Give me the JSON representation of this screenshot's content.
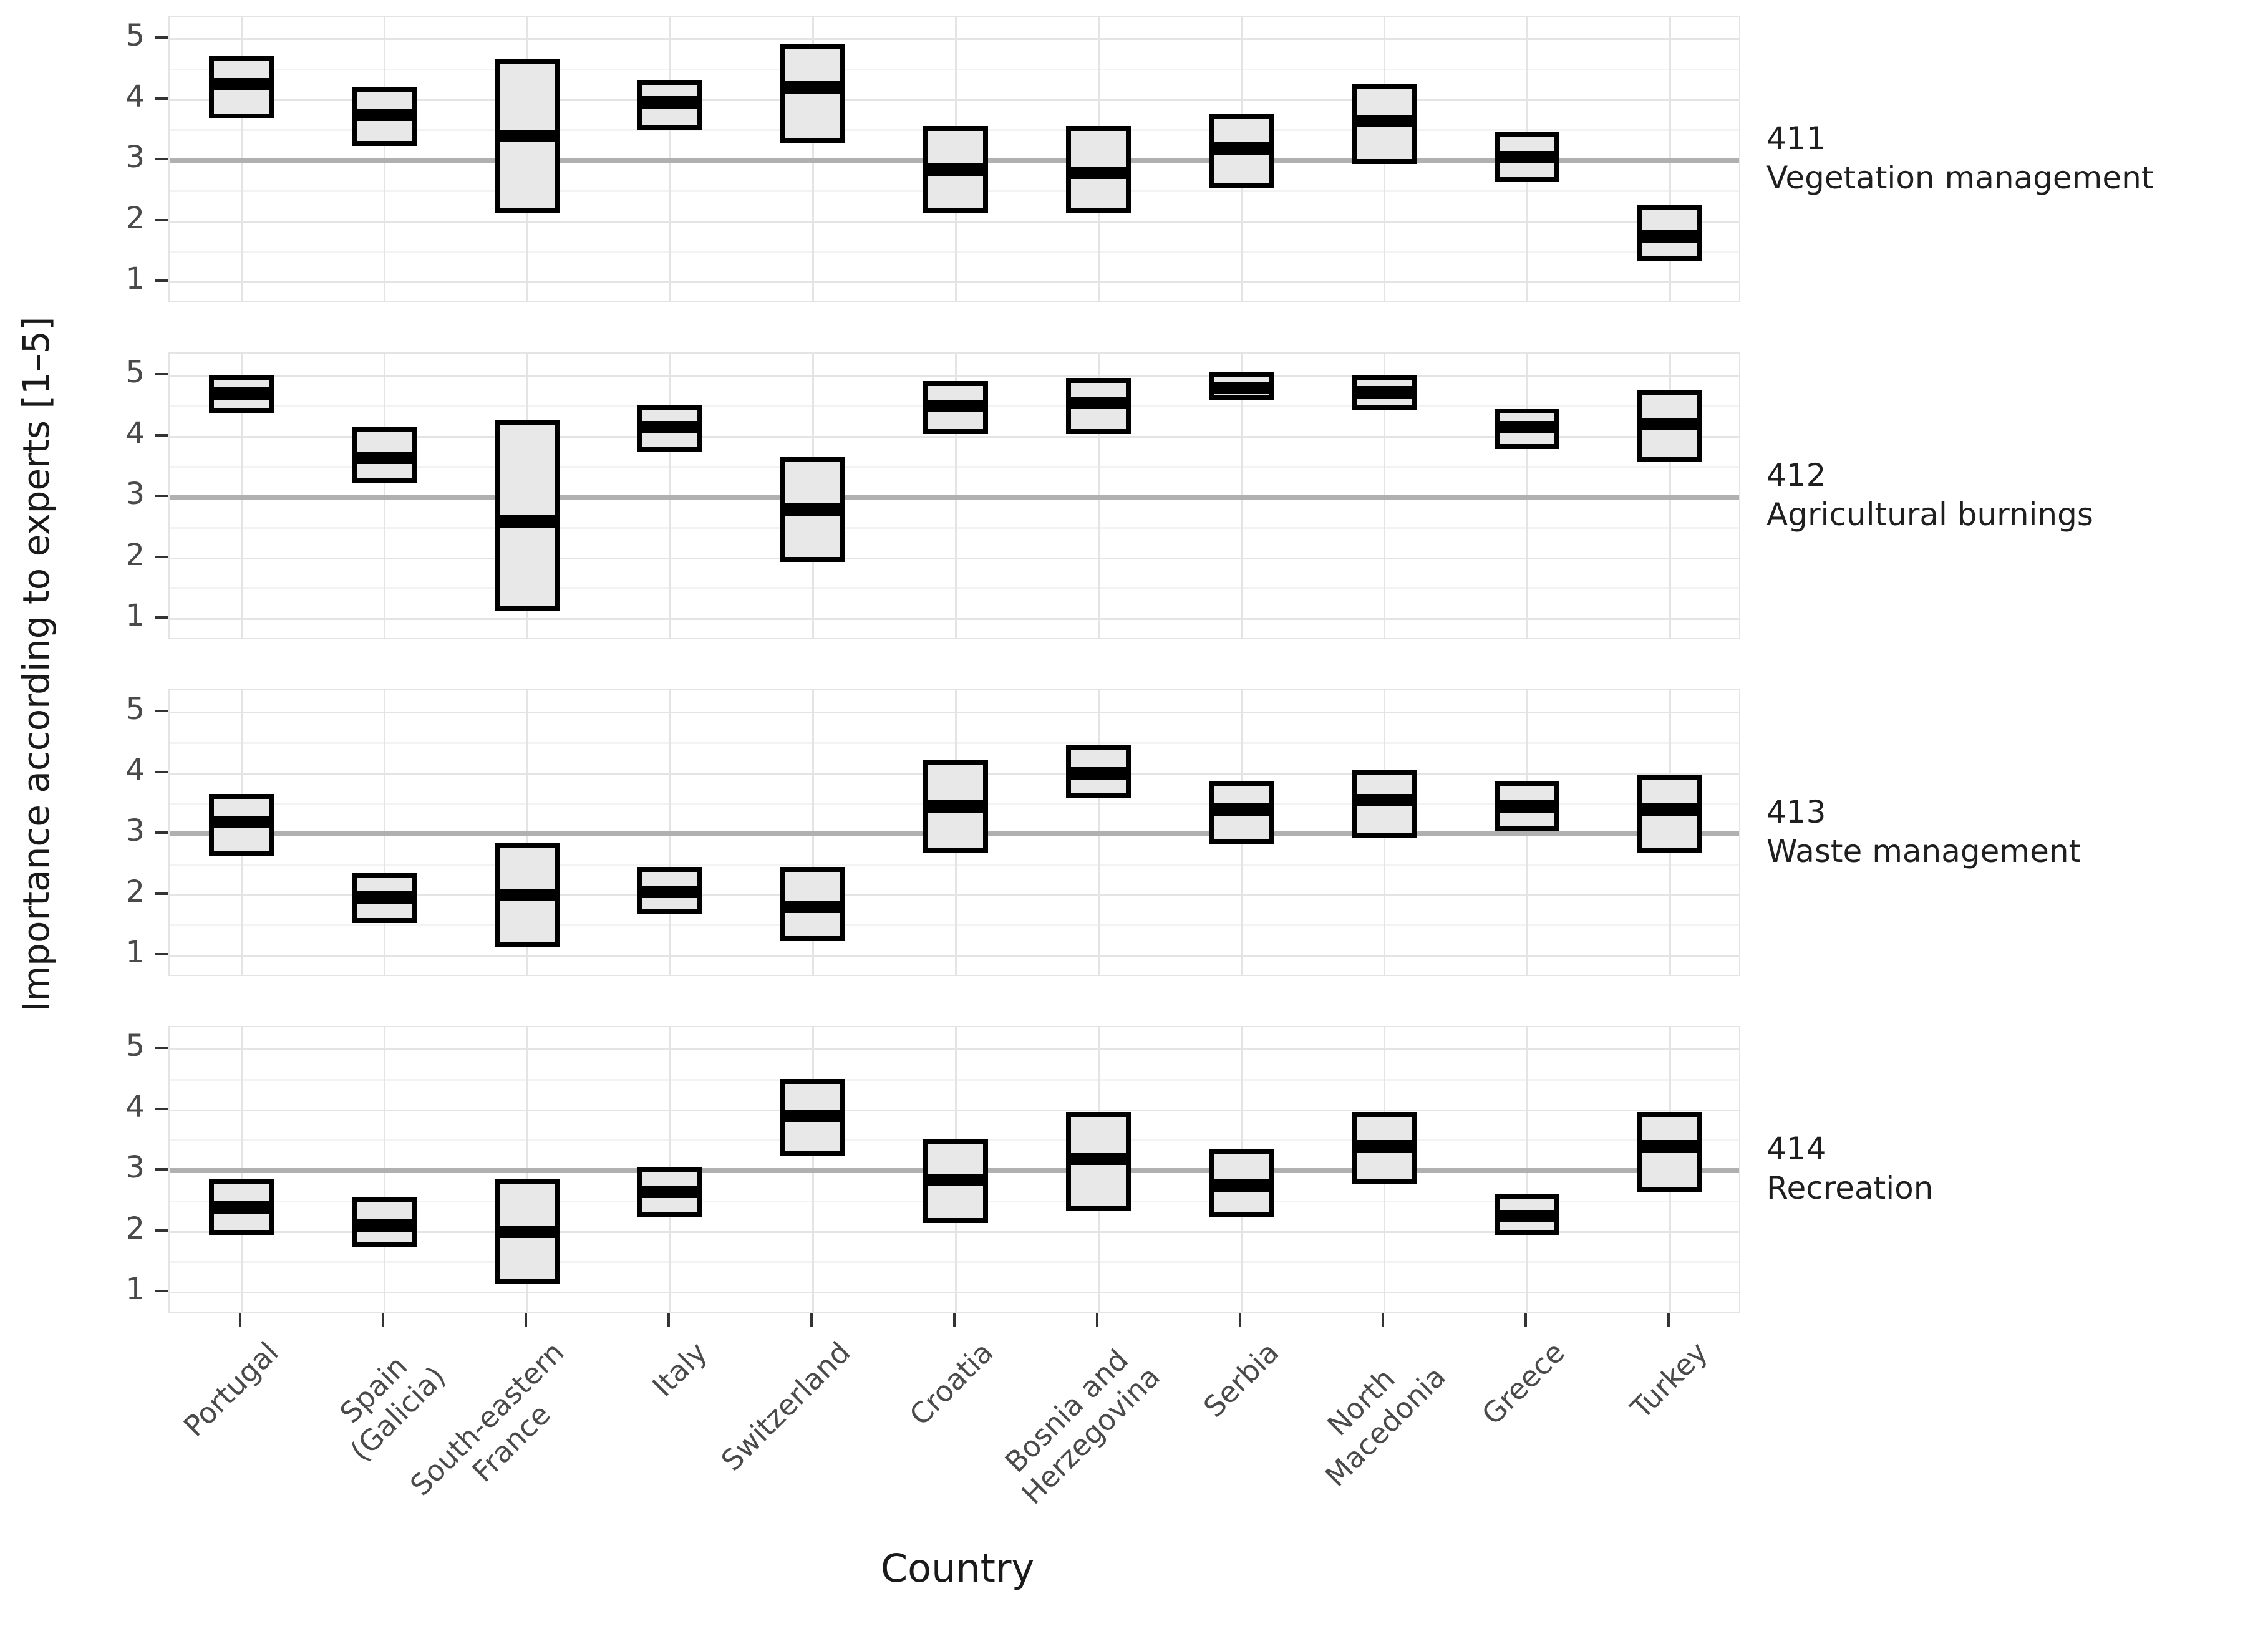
{
  "page": {
    "y_axis_title": "Importance according to experts [1–5]",
    "x_axis_title": "Country"
  },
  "colors": {
    "background": "#ffffff",
    "box_fill": "#e8e8e8",
    "box_border": "#000000",
    "median_line": "#000000",
    "grid_major": "#e4e4e4",
    "grid_minor": "#f3f3f3",
    "reference_line": "#b0b0b0",
    "axis_text": "#4a4a4a",
    "facet_label_text": "#1f1f1f",
    "axis_title_text": "#1a1a1a",
    "tick_mark": "#333333"
  },
  "chart_data": {
    "type": "boxplot",
    "subtype": "crossbar (no whiskers), 4 vertically stacked facet panels sharing the x axis",
    "xlabel": "Country",
    "ylabel": "Importance according to experts [1–5]",
    "ylim": [
      1,
      5
    ],
    "y_ticks": [
      5,
      4,
      3,
      2,
      1
    ],
    "y_minor_gridlines": [
      4.5,
      3.5,
      2.5,
      1.5
    ],
    "reference_line_y": 3,
    "grid": "horizontal major+minor gridlines, vertical major gridline at each category, light gray on white",
    "legend": "none",
    "box_format": "[q1, median, q3]",
    "categories": [
      "Portugal",
      "Spain (Galicia)",
      "South-eastern France",
      "Italy",
      "Switzerland",
      "Croatia",
      "Bosnia and Herzegovina",
      "Serbia",
      "North Macedonia",
      "Greece",
      "Turkey"
    ],
    "category_label_lines": [
      [
        "Portugal"
      ],
      [
        "Spain",
        "(Galicia)"
      ],
      [
        "South-eastern",
        "France"
      ],
      [
        "Italy"
      ],
      [
        "Switzerland"
      ],
      [
        "Croatia"
      ],
      [
        "Bosnia and",
        "Herzegovina"
      ],
      [
        "Serbia"
      ],
      [
        "North",
        "Macedonia"
      ],
      [
        "Greece"
      ],
      [
        "Turkey"
      ]
    ],
    "facets": [
      {
        "code": "411",
        "label": "Vegetation management",
        "boxes": [
          [
            3.75,
            4.25,
            4.65
          ],
          [
            3.3,
            3.75,
            4.15
          ],
          [
            2.2,
            3.4,
            4.6
          ],
          [
            3.55,
            3.95,
            4.25
          ],
          [
            3.35,
            4.2,
            4.85
          ],
          [
            2.2,
            2.85,
            3.5
          ],
          [
            2.2,
            2.8,
            3.5
          ],
          [
            2.6,
            3.2,
            3.7
          ],
          [
            3.0,
            3.65,
            4.2
          ],
          [
            2.7,
            3.05,
            3.4
          ],
          [
            1.4,
            1.75,
            2.2
          ]
        ]
      },
      {
        "code": "412",
        "label": "Agricultural burnings",
        "boxes": [
          [
            4.45,
            4.7,
            4.95
          ],
          [
            3.3,
            3.65,
            4.1
          ],
          [
            1.2,
            2.6,
            4.2
          ],
          [
            3.8,
            4.15,
            4.45
          ],
          [
            2.0,
            2.8,
            3.6
          ],
          [
            4.1,
            4.5,
            4.85
          ],
          [
            4.1,
            4.55,
            4.9
          ],
          [
            4.65,
            4.8,
            5.0
          ],
          [
            4.5,
            4.72,
            4.95
          ],
          [
            3.85,
            4.15,
            4.4
          ],
          [
            3.65,
            4.2,
            4.7
          ]
        ]
      },
      {
        "code": "413",
        "label": "Waste management",
        "boxes": [
          [
            2.7,
            3.2,
            3.6
          ],
          [
            1.6,
            1.95,
            2.3
          ],
          [
            1.2,
            2.0,
            2.8
          ],
          [
            1.75,
            2.05,
            2.4
          ],
          [
            1.3,
            1.8,
            2.4
          ],
          [
            2.75,
            3.45,
            4.15
          ],
          [
            3.65,
            4.0,
            4.4
          ],
          [
            2.9,
            3.4,
            3.8
          ],
          [
            3.0,
            3.55,
            4.0
          ],
          [
            3.1,
            3.45,
            3.8
          ],
          [
            2.75,
            3.4,
            3.9
          ]
        ]
      },
      {
        "code": "414",
        "label": "Recreation",
        "boxes": [
          [
            2.0,
            2.4,
            2.8
          ],
          [
            1.8,
            2.1,
            2.5
          ],
          [
            1.2,
            2.0,
            2.8
          ],
          [
            2.3,
            2.65,
            3.0
          ],
          [
            3.3,
            3.9,
            4.45
          ],
          [
            2.2,
            2.85,
            3.45
          ],
          [
            2.4,
            3.2,
            3.9
          ],
          [
            2.3,
            2.75,
            3.3
          ],
          [
            2.85,
            3.4,
            3.9
          ],
          [
            2.0,
            2.25,
            2.55
          ],
          [
            2.7,
            3.4,
            3.9
          ]
        ]
      }
    ]
  }
}
